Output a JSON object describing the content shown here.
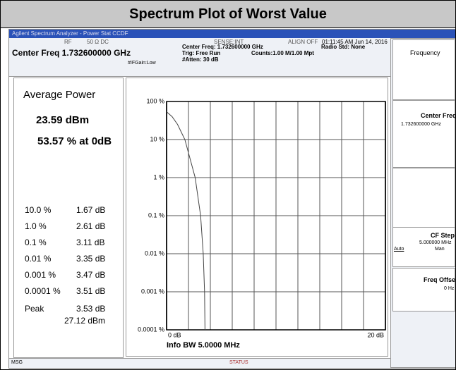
{
  "header": {
    "title": "Spectrum Plot of Worst Value"
  },
  "window_title": "Agilent Spectrum Analyzer - Power Stat CCDF",
  "status_bar": {
    "rf": "RF",
    "input": "50 Ω  DC",
    "sense": "SENSE:INT",
    "align": "ALIGN OFF",
    "center_freq": "Center Freq 1.732600000 GHz",
    "center_freq_small": "Center Freq: 1.732600000 GHz",
    "trig": "Trig: Free Run",
    "atten": "#Atten: 30 dB",
    "gain": "#IFGain:Low",
    "counts": "Counts:1.00 M/1.00 Mpt",
    "time": "01:11:45 AM Jun 14, 2016",
    "radio_std": "Radio Std: None"
  },
  "results": {
    "heading": "Average Power",
    "power": "23.59 dBm",
    "percent": "53.57 % at 0dB",
    "rows": [
      [
        "10.0 %",
        "1.67 dB"
      ],
      [
        "1.0 %",
        "2.61 dB"
      ],
      [
        "0.1 %",
        "3.11 dB"
      ],
      [
        "0.01 %",
        "3.35 dB"
      ],
      [
        "0.001 %",
        "3.47 dB"
      ],
      [
        "0.0001 %",
        "3.51 dB"
      ]
    ],
    "peak": {
      "label": "Peak",
      "db": "3.53 dB",
      "dbm": "27.12 dBm"
    }
  },
  "plot": {
    "type": "line",
    "x": [
      0,
      0.5,
      1.0,
      1.67,
      2.61,
      3.11,
      3.35,
      3.47,
      3.51
    ],
    "values": [
      53.57,
      40,
      25,
      10,
      1,
      0.1,
      0.01,
      0.001,
      0.0001
    ],
    "color": "#444444",
    "xlim": [
      0,
      20
    ],
    "ylim": [
      0.0001,
      100
    ],
    "log_y": true,
    "yticks": [
      {
        "value": 100,
        "label": "100 %"
      },
      {
        "value": 10,
        "label": "10 %"
      },
      {
        "value": 1,
        "label": "1 %"
      },
      {
        "value": 0.1,
        "label": "0.1 %"
      },
      {
        "value": 0.01,
        "label": "0.01 %"
      },
      {
        "value": 0.001,
        "label": "0.001 %"
      },
      {
        "value": 0.0001,
        "label": "0.0001 %"
      }
    ],
    "xticks": [
      {
        "value": 0,
        "label": "0 dB"
      },
      {
        "value": 20,
        "label": "20 dB"
      }
    ],
    "xgrid": [
      2,
      4,
      6,
      8,
      10,
      12,
      14,
      16,
      18
    ],
    "info_bw": "Info BW 5.0000 MHz"
  },
  "softkeys": {
    "menu": "Frequency",
    "center_freq": {
      "label": "Center Freq",
      "value": "1.732600000 GHz"
    },
    "cf_step": {
      "label": "CF Step",
      "value": "5.000000 MHz",
      "auto": "Auto",
      "man": "Man"
    },
    "freq_offset": {
      "label": "Freq Offset",
      "value": "0 Hz"
    }
  },
  "footer": {
    "msg": "MSG",
    "status": "STATUS"
  }
}
